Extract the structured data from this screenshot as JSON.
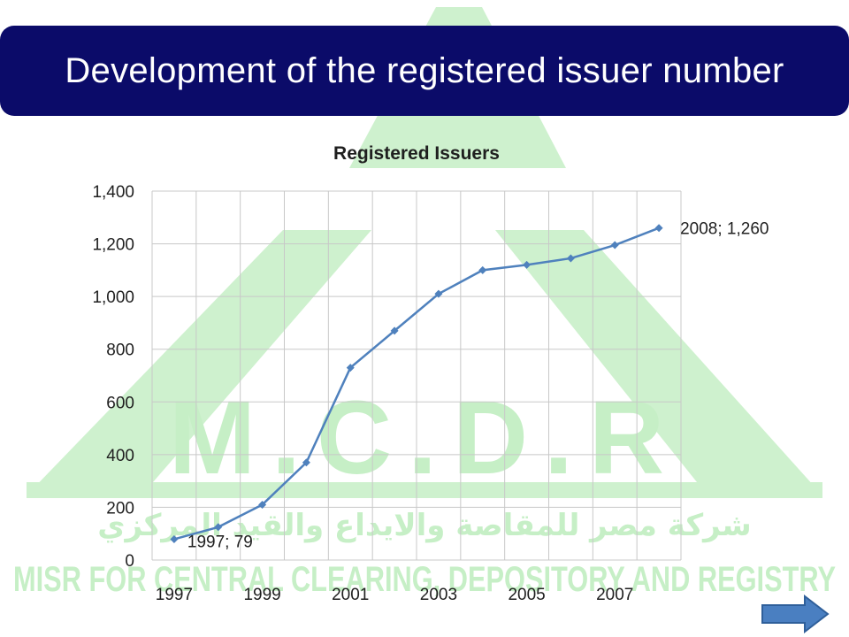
{
  "slide": {
    "title": "Development of the registered issuer number"
  },
  "watermark": {
    "logo_letters": "M.C.D.R",
    "arabic_text": "شركة مصر للمقاصة والايداع والقيد المركزي",
    "english_text": "MISR FOR CENTRAL CLEARING, DEPOSITORY AND REGISTRY",
    "color": "#c6efc6"
  },
  "navigation": {
    "next_icon": "right-arrow-icon",
    "color": "#4a7fc1"
  },
  "chart_data": {
    "type": "line",
    "title": "Registered Issuers",
    "x": [
      1997,
      1998,
      1999,
      2000,
      2001,
      2002,
      2003,
      2004,
      2005,
      2006,
      2007,
      2008
    ],
    "x_tick_labels": [
      "1997",
      "1999",
      "2001",
      "2003",
      "2005",
      "2007"
    ],
    "series": [
      {
        "values": [
          79,
          125,
          210,
          370,
          730,
          870,
          1010,
          1100,
          1120,
          1145,
          1195,
          1260
        ]
      }
    ],
    "ylim": [
      0,
      1400
    ],
    "y_ticks": [
      0,
      200,
      400,
      600,
      800,
      1000,
      1200,
      1400
    ],
    "y_tick_labels": [
      "0",
      "200",
      "400",
      "600",
      "800",
      "1,000",
      "1,200",
      "1,400"
    ],
    "data_labels": [
      {
        "index": 0,
        "text": "1997; 79"
      },
      {
        "index": 11,
        "text": "2008; 1,260"
      }
    ],
    "grid": true,
    "legend": "none",
    "line_color": "#4f81bd",
    "grid_color": "#c8c8c8"
  }
}
